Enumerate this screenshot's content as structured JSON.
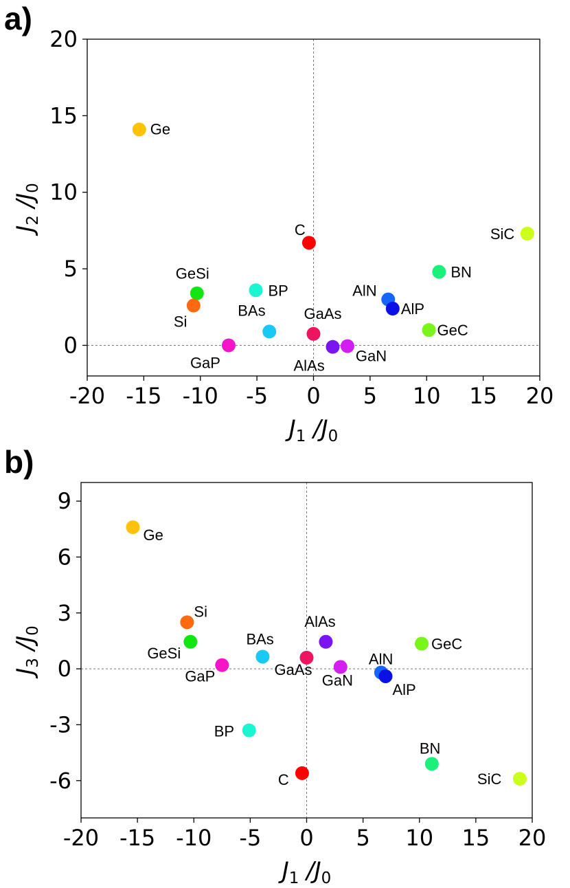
{
  "chart_data": [
    {
      "type": "scatter",
      "panel_label": "a)",
      "xlabel": "J1 / J0",
      "ylabel": "J2 / J0",
      "xlim": [
        -20,
        20
      ],
      "ylim": [
        -2,
        20
      ],
      "xticks": [
        -20,
        -15,
        -10,
        -5,
        0,
        5,
        10,
        15,
        20
      ],
      "yticks": [
        0,
        5,
        10,
        15,
        20
      ],
      "reference_lines": "dashed lines at x = 0 and y = 0",
      "points": [
        {
          "label": "Ge",
          "x": -15.4,
          "y": 14.1,
          "color": "#FFC20A"
        },
        {
          "label": "C",
          "x": -0.4,
          "y": 6.7,
          "color": "#FF0000"
        },
        {
          "label": "SiC",
          "x": 18.9,
          "y": 7.3,
          "color": "#CCFF1A"
        },
        {
          "label": "BN",
          "x": 11.1,
          "y": 4.8,
          "color": "#1AF07A"
        },
        {
          "label": "GeSi",
          "x": -10.3,
          "y": 3.4,
          "color": "#12E612"
        },
        {
          "label": "BP",
          "x": -5.1,
          "y": 3.6,
          "color": "#1AF5D2"
        },
        {
          "label": "Si",
          "x": -10.6,
          "y": 2.6,
          "color": "#FF6A10"
        },
        {
          "label": "AlN",
          "x": 6.6,
          "y": 3.0,
          "color": "#1466FF"
        },
        {
          "label": "AlP",
          "x": 7.0,
          "y": 2.4,
          "color": "#0A10E6"
        },
        {
          "label": "BAs",
          "x": -3.9,
          "y": 0.9,
          "color": "#18C8F5"
        },
        {
          "label": "GaAs",
          "x": 0.0,
          "y": 0.75,
          "color": "#F01460"
        },
        {
          "label": "GeC",
          "x": 10.2,
          "y": 1.0,
          "color": "#7AF51A"
        },
        {
          "label": "GaP",
          "x": -7.5,
          "y": 0.0,
          "color": "#F514C8"
        },
        {
          "label": "AlAs",
          "x": 1.7,
          "y": -0.1,
          "color": "#7A14F0"
        },
        {
          "label": "GaN",
          "x": 3.0,
          "y": -0.05,
          "color": "#D21EF0"
        }
      ]
    },
    {
      "type": "scatter",
      "panel_label": "b)",
      "xlabel": "J1 / J0",
      "ylabel": "J3 / J0",
      "xlim": [
        -20,
        20
      ],
      "ylim": [
        -8,
        10
      ],
      "xticks": [
        -20,
        -15,
        -10,
        -5,
        0,
        5,
        10,
        15,
        20
      ],
      "yticks": [
        -6,
        -3,
        0,
        3,
        6,
        9
      ],
      "reference_lines": "dashed lines at x = 0 and y = 0",
      "points": [
        {
          "label": "Ge",
          "x": -15.4,
          "y": 7.6,
          "color": "#FFC20A"
        },
        {
          "label": "Si",
          "x": -10.6,
          "y": 2.5,
          "color": "#FF6A10"
        },
        {
          "label": "GeSi",
          "x": -10.3,
          "y": 1.45,
          "color": "#12E612"
        },
        {
          "label": "AlAs",
          "x": 1.7,
          "y": 1.45,
          "color": "#7A14F0"
        },
        {
          "label": "GeC",
          "x": 10.2,
          "y": 1.35,
          "color": "#7AF51A"
        },
        {
          "label": "BAs",
          "x": -3.9,
          "y": 0.65,
          "color": "#18C8F5"
        },
        {
          "label": "GaAs",
          "x": 0.0,
          "y": 0.6,
          "color": "#F01460"
        },
        {
          "label": "GaP",
          "x": -7.5,
          "y": 0.2,
          "color": "#F514C8"
        },
        {
          "label": "GaN",
          "x": 3.0,
          "y": 0.1,
          "color": "#D21EF0"
        },
        {
          "label": "AlN",
          "x": 6.6,
          "y": -0.2,
          "color": "#1466FF"
        },
        {
          "label": "AlP",
          "x": 7.0,
          "y": -0.4,
          "color": "#0A10E6"
        },
        {
          "label": "BP",
          "x": -5.1,
          "y": -3.3,
          "color": "#1AF5D2"
        },
        {
          "label": "BN",
          "x": 11.1,
          "y": -5.1,
          "color": "#1AF07A"
        },
        {
          "label": "C",
          "x": -0.4,
          "y": -5.6,
          "color": "#FF0000"
        },
        {
          "label": "SiC",
          "x": 18.9,
          "y": -5.9,
          "color": "#CCFF1A"
        }
      ]
    }
  ]
}
